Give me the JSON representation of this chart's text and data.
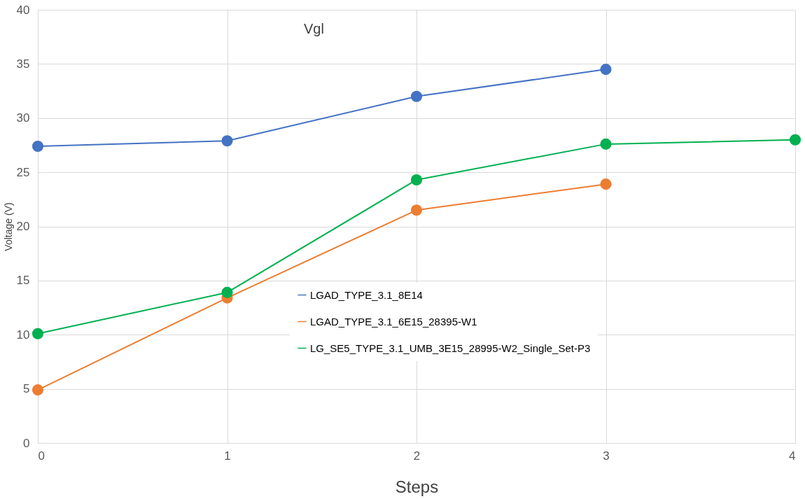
{
  "chart_data": {
    "type": "line",
    "title": "Vgl",
    "xlabel": "Steps",
    "ylabel": "Voltage (V)",
    "x": [
      0,
      1,
      2,
      3,
      4
    ],
    "series": [
      {
        "name": "LGAD_TYPE_3.1_8E14",
        "color": "#4472c4",
        "values": [
          27.4,
          27.9,
          32.0,
          34.5,
          null
        ]
      },
      {
        "name": "LGAD_TYPE_3.1_6E15_28395-W1",
        "color": "#ed7d31",
        "values": [
          4.9,
          13.4,
          21.5,
          23.9,
          null
        ]
      },
      {
        "name": "LG_SE5_TYPE_3.1_UMB_3E15_28995-W2_Single_Set-P3",
        "color": "#00b050",
        "values": [
          10.1,
          13.9,
          24.3,
          27.6,
          28.0
        ]
      }
    ],
    "xlim": [
      0,
      4
    ],
    "xticks": [
      0,
      1,
      2,
      3,
      4
    ],
    "ylim": [
      0,
      40
    ],
    "yticks": [
      0,
      5,
      10,
      15,
      20,
      25,
      30,
      35,
      40
    ],
    "grid": true,
    "legend": "right",
    "marker": "circle",
    "line_style": "solid"
  }
}
